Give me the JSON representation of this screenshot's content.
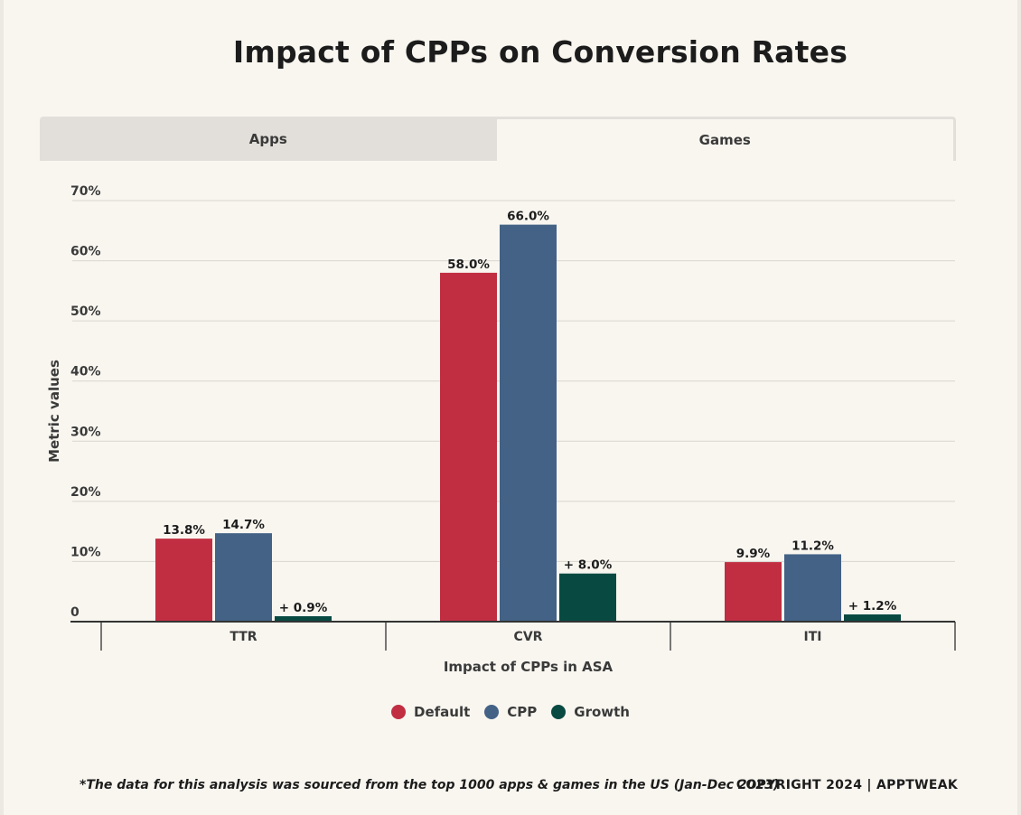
{
  "page": {
    "title": "Impact of CPPs on Conversion Rates",
    "footnote": "*The data for this analysis was sourced from the top 1000 apps & games in the US (Jan-Dec 2023)",
    "copyright": "COPYRIGHT 2024 | APPTWEAK"
  },
  "tabs": [
    {
      "label": "Apps",
      "active": false
    },
    {
      "label": "Games",
      "active": true
    }
  ],
  "colors": {
    "default": "#c12e42",
    "cpp": "#436285",
    "growth": "#084a42",
    "grid": "#d9d6d0",
    "axis": "#333333"
  },
  "chart_data": {
    "type": "bar",
    "xlabel": "Impact of CPPs in ASA",
    "ylabel": "Metric values",
    "ylim": [
      0,
      70
    ],
    "yticks": [
      "0",
      "10%",
      "20%",
      "30%",
      "40%",
      "50%",
      "60%",
      "70%"
    ],
    "ytick_values": [
      0,
      10,
      20,
      30,
      40,
      50,
      60,
      70
    ],
    "grid": true,
    "legend_position": "bottom-center",
    "categories": [
      "TTR",
      "CVR",
      "ITI"
    ],
    "series": [
      {
        "name": "Default",
        "color": "#c12e42",
        "values": [
          13.8,
          58.0,
          9.9
        ],
        "labels": [
          "13.8%",
          "58.0%",
          "9.9%"
        ]
      },
      {
        "name": "CPP",
        "color": "#436285",
        "values": [
          14.7,
          66.0,
          11.2
        ],
        "labels": [
          "14.7%",
          "66.0%",
          "11.2%"
        ]
      },
      {
        "name": "Growth",
        "color": "#084a42",
        "values": [
          0.9,
          8.0,
          1.2
        ],
        "labels": [
          "+ 0.9%",
          "+ 8.0%",
          "+ 1.2%"
        ]
      }
    ]
  }
}
